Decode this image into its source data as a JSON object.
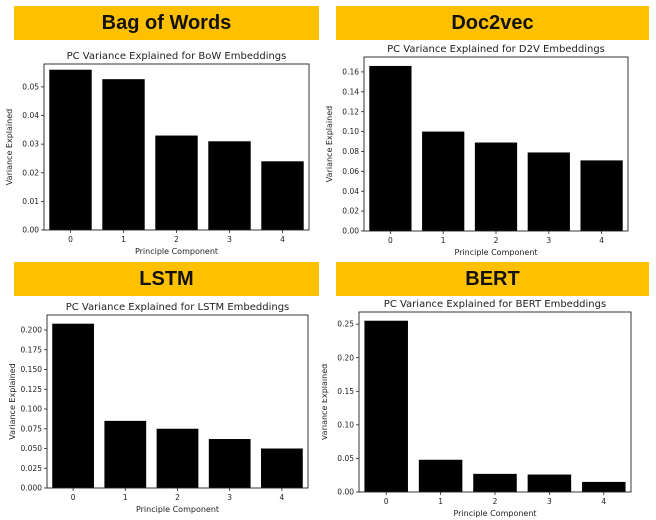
{
  "panels": [
    {
      "banner": "Bag of Words",
      "banner_color": "#FFC000",
      "chart_data": {
        "type": "bar",
        "title": "PC Variance Explained for BoW Embeddings",
        "xlabel": "Principle Component",
        "ylabel": "Variance Explained",
        "categories": [
          "0",
          "1",
          "2",
          "3",
          "4"
        ],
        "values": [
          0.056,
          0.0527,
          0.033,
          0.031,
          0.024
        ],
        "ylim": [
          0,
          0.058
        ],
        "yticks": [
          0.0,
          0.01,
          0.02,
          0.03,
          0.04,
          0.05
        ],
        "ytick_labels": [
          "0.00",
          "0.01",
          "0.02",
          "0.03",
          "0.04",
          "0.05"
        ],
        "bar_color": "#000000",
        "grid": false
      }
    },
    {
      "banner": "Doc2vec",
      "banner_color": "#FFC000",
      "chart_data": {
        "type": "bar",
        "title": "PC Variance Explained for D2V Embeddings",
        "xlabel": "Principle Component",
        "ylabel": "Variance Explained",
        "categories": [
          "0",
          "1",
          "2",
          "3",
          "4"
        ],
        "values": [
          0.166,
          0.1,
          0.089,
          0.079,
          0.071
        ],
        "ylim": [
          0,
          0.175
        ],
        "yticks": [
          0.0,
          0.02,
          0.04,
          0.06,
          0.08,
          0.1,
          0.12,
          0.14,
          0.16
        ],
        "ytick_labels": [
          "0.00",
          "0.02",
          "0.04",
          "0.06",
          "0.08",
          "0.10",
          "0.12",
          "0.14",
          "0.16"
        ],
        "bar_color": "#000000",
        "grid": false
      }
    },
    {
      "banner": "LSTM",
      "banner_color": "#FFC000",
      "chart_data": {
        "type": "bar",
        "title": "PC Variance Explained for LSTM Embeddings",
        "xlabel": "Principle Component",
        "ylabel": "Variance Explained",
        "categories": [
          "0",
          "1",
          "2",
          "3",
          "4"
        ],
        "values": [
          0.208,
          0.085,
          0.075,
          0.062,
          0.05
        ],
        "ylim": [
          0,
          0.219
        ],
        "yticks": [
          0.0,
          0.025,
          0.05,
          0.075,
          0.1,
          0.125,
          0.15,
          0.175,
          0.2
        ],
        "ytick_labels": [
          "0.000",
          "0.025",
          "0.050",
          "0.075",
          "0.100",
          "0.125",
          "0.150",
          "0.175",
          "0.200"
        ],
        "bar_color": "#000000",
        "grid": false
      }
    },
    {
      "banner": "BERT",
      "banner_color": "#FFC000",
      "chart_data": {
        "type": "bar",
        "title": "PC Variance Explained for BERT Embeddings",
        "xlabel": "Principle Component",
        "ylabel": "Variance Explained",
        "categories": [
          "0",
          "1",
          "2",
          "3",
          "4"
        ],
        "values": [
          0.255,
          0.048,
          0.027,
          0.026,
          0.015
        ],
        "ylim": [
          0,
          0.268
        ],
        "yticks": [
          0.0,
          0.05,
          0.1,
          0.15,
          0.2,
          0.25
        ],
        "ytick_labels": [
          "0.00",
          "0.05",
          "0.10",
          "0.15",
          "0.20",
          "0.25"
        ],
        "bar_color": "#000000",
        "grid": false
      }
    }
  ]
}
